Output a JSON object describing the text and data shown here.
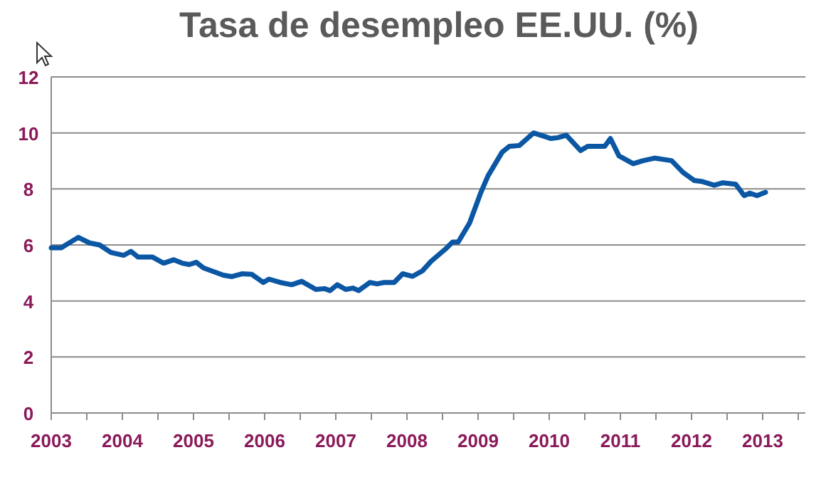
{
  "chart_data": {
    "type": "line",
    "title": "Tasa de desempleo EE.UU. (%)",
    "x": [
      2003.0,
      2003.14,
      2003.38,
      2003.54,
      2003.68,
      2003.84,
      2004.02,
      2004.12,
      2004.22,
      2004.42,
      2004.58,
      2004.72,
      2004.84,
      2004.94,
      2005.04,
      2005.14,
      2005.42,
      2005.54,
      2005.68,
      2005.82,
      2005.98,
      2006.06,
      2006.22,
      2006.38,
      2006.52,
      2006.72,
      2006.84,
      2006.92,
      2007.02,
      2007.14,
      2007.24,
      2007.32,
      2007.48,
      2007.58,
      2007.68,
      2007.82,
      2007.94,
      2008.08,
      2008.22,
      2008.34,
      2008.54,
      2008.64,
      2008.72,
      2008.88,
      2009.04,
      2009.14,
      2009.34,
      2009.44,
      2009.58,
      2009.78,
      2009.88,
      2010.02,
      2010.12,
      2010.24,
      2010.44,
      2010.54,
      2010.78,
      2010.86,
      2010.98,
      2011.18,
      2011.32,
      2011.48,
      2011.72,
      2011.88,
      2012.04,
      2012.14,
      2012.32,
      2012.44,
      2012.62,
      2012.74,
      2012.82,
      2012.92,
      2013.04
    ],
    "series": [
      {
        "color": "#0b57a4",
        "values": [
          5.9,
          5.9,
          6.27,
          6.07,
          6.0,
          5.73,
          5.63,
          5.77,
          5.57,
          5.57,
          5.35,
          5.47,
          5.35,
          5.3,
          5.38,
          5.18,
          4.92,
          4.87,
          4.97,
          4.95,
          4.66,
          4.78,
          4.66,
          4.58,
          4.7,
          4.41,
          4.44,
          4.37,
          4.58,
          4.41,
          4.46,
          4.37,
          4.66,
          4.61,
          4.66,
          4.66,
          4.97,
          4.88,
          5.08,
          5.42,
          5.85,
          6.1,
          6.1,
          6.78,
          7.88,
          8.47,
          9.32,
          9.52,
          9.55,
          10.0,
          9.92,
          9.8,
          9.83,
          9.92,
          9.37,
          9.52,
          9.52,
          9.8,
          9.18,
          8.9,
          9.01,
          9.1,
          9.01,
          8.59,
          8.3,
          8.27,
          8.13,
          8.22,
          8.17,
          7.76,
          7.85,
          7.76,
          7.88
        ]
      }
    ],
    "xlim": [
      2003,
      2013.6
    ],
    "xticks": [
      2003,
      {
        "value": 2003.5,
        "label": null
      },
      2004,
      {
        "value": 2004.5,
        "label": null
      },
      2005,
      {
        "value": 2005.5,
        "label": null
      },
      2006,
      {
        "value": 2006.5,
        "label": null
      },
      2007,
      {
        "value": 2007.5,
        "label": null
      },
      2008,
      {
        "value": 2008.5,
        "label": null
      },
      2009,
      {
        "value": 2009.5,
        "label": null
      },
      2010,
      {
        "value": 2010.5,
        "label": null
      },
      2011,
      {
        "value": 2011.5,
        "label": null
      },
      2012,
      {
        "value": 2012.5,
        "label": null
      },
      2013,
      {
        "value": 2013.5,
        "label": null
      }
    ],
    "ylim": [
      0,
      12
    ],
    "yticks": [
      0,
      2,
      4,
      6,
      8,
      10,
      12
    ],
    "grid": "y",
    "marker": "none",
    "line_style": "solid"
  }
}
